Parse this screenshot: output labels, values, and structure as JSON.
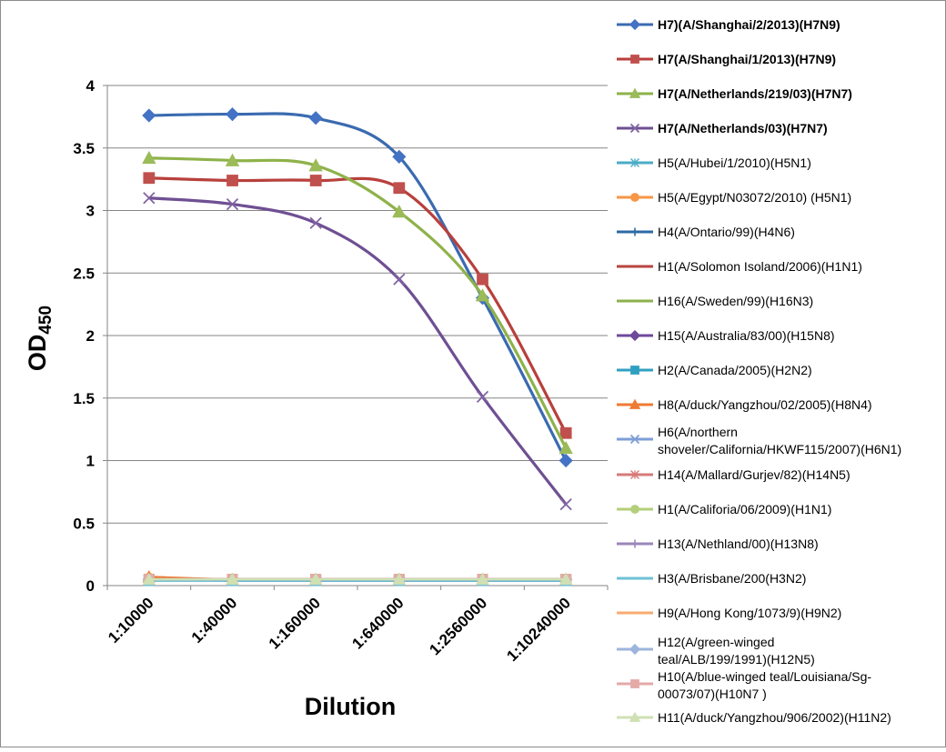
{
  "chart_data": {
    "type": "line",
    "title": "",
    "xlabel": "Dilution",
    "ylabel": {
      "main": "OD",
      "sub": "450"
    },
    "ylim": [
      0,
      4
    ],
    "yticks": [
      "0",
      "0.5",
      "1",
      "1.5",
      "2",
      "2.5",
      "3",
      "3.5",
      "4"
    ],
    "grid": true,
    "legend_position": "right",
    "categories": [
      "1:10000",
      "1:40000",
      "1:160000",
      "1:640000",
      "1:2560000",
      "1:10240000"
    ],
    "series": [
      {
        "name": "H7)(A/Shanghai/2/2013)(H7N9)",
        "bold": true,
        "color": "#4472c4",
        "line_color": "#3a6bb0",
        "marker": "diamond",
        "values": [
          3.76,
          3.77,
          3.74,
          3.43,
          2.3,
          1.0
        ]
      },
      {
        "name": "H7(A/Shanghai/1/2013)(H7N9)",
        "bold": true,
        "color": "#c0504d",
        "line_color": "#b8403c",
        "marker": "square",
        "values": [
          3.26,
          3.24,
          3.24,
          3.18,
          2.45,
          1.22
        ]
      },
      {
        "name": "H7(A/Netherlands/219/03)(H7N7)",
        "bold": true,
        "color": "#9bbb59",
        "line_color": "#8eb24a",
        "marker": "triangle",
        "values": [
          3.42,
          3.4,
          3.36,
          2.99,
          2.32,
          1.1
        ]
      },
      {
        "name": "H7(A/Netherlands/03)(H7N7)",
        "bold": true,
        "color": "#8064a2",
        "line_color": "#6f4f93",
        "marker": "x",
        "values": [
          3.1,
          3.05,
          2.9,
          2.45,
          1.51,
          0.65
        ]
      },
      {
        "name": "H5(A/Hubei/1/2010)(H5N1)",
        "bold": false,
        "color": "#4bacc6",
        "marker": "star",
        "values": [
          0.05,
          0.04,
          0.04,
          0.04,
          0.04,
          0.04
        ]
      },
      {
        "name": "H5(A/Egypt/N03072/2010) (H5N1)",
        "bold": false,
        "color": "#f79646",
        "marker": "circle",
        "values": [
          0.06,
          0.05,
          0.05,
          0.05,
          0.05,
          0.05
        ]
      },
      {
        "name": "H4(A/Ontario/99)(H4N6)",
        "bold": false,
        "color": "#2c6aa6",
        "marker": "plus",
        "values": [
          0.05,
          0.04,
          0.04,
          0.04,
          0.04,
          0.04
        ]
      },
      {
        "name": "H1(A/Solomon Isoland/2006)(H1N1)",
        "bold": false,
        "color": "#b84541",
        "marker": "none",
        "values": [
          0.05,
          0.05,
          0.05,
          0.05,
          0.05,
          0.05
        ]
      },
      {
        "name": "H16(A/Sweden/99)(H16N3)",
        "bold": false,
        "color": "#8cb24c",
        "marker": "none",
        "values": [
          0.05,
          0.05,
          0.05,
          0.05,
          0.05,
          0.05
        ]
      },
      {
        "name": "H15(A/Australia/83/00)(H15N8)",
        "bold": false,
        "color": "#6e4a9a",
        "marker": "diamond",
        "values": [
          0.05,
          0.05,
          0.05,
          0.05,
          0.05,
          0.05
        ]
      },
      {
        "name": "H2(A/Canada/2005)(H2N2)",
        "bold": false,
        "color": "#31a0c0",
        "marker": "square",
        "values": [
          0.04,
          0.04,
          0.04,
          0.04,
          0.04,
          0.04
        ]
      },
      {
        "name": "H8(A/duck/Yangzhou/02/2005)(H8N4)",
        "bold": false,
        "color": "#ef7a33",
        "marker": "triangle",
        "values": [
          0.07,
          0.05,
          0.05,
          0.05,
          0.05,
          0.05
        ]
      },
      {
        "name": "H6(A/northern shoveler/California/HKWF115/2007)(H6N1)",
        "bold": false,
        "color": "#7e9ed6",
        "marker": "x",
        "values": [
          0.05,
          0.05,
          0.05,
          0.05,
          0.05,
          0.05
        ]
      },
      {
        "name": "H14(A/Mallard/Gurjev/82)(H14N5)",
        "bold": false,
        "color": "#d67a78",
        "marker": "star",
        "values": [
          0.05,
          0.05,
          0.05,
          0.05,
          0.05,
          0.05
        ]
      },
      {
        "name": "H1(A/Califoria/06/2009)(H1N1)",
        "bold": false,
        "color": "#b3cf7a",
        "marker": "circle",
        "values": [
          0.05,
          0.05,
          0.05,
          0.05,
          0.05,
          0.05
        ]
      },
      {
        "name": "H13(A/Nethland/00)(H13N8)",
        "bold": false,
        "color": "#9b86bb",
        "marker": "plus",
        "values": [
          0.05,
          0.05,
          0.05,
          0.05,
          0.05,
          0.05
        ]
      },
      {
        "name": "H3(A/Brisbane/200(H3N2)",
        "bold": false,
        "color": "#6fc0d6",
        "marker": "none",
        "values": [
          0.04,
          0.04,
          0.04,
          0.04,
          0.04,
          0.04
        ]
      },
      {
        "name": "H9(A/Hong Kong/1073/9)(H9N2)",
        "bold": false,
        "color": "#f7ab72",
        "marker": "none",
        "values": [
          0.05,
          0.05,
          0.05,
          0.05,
          0.05,
          0.05
        ]
      },
      {
        "name": "H12(A/green-winged teal/ALB/199/1991)(H12N5)",
        "bold": false,
        "color": "#9db5dc",
        "marker": "diamond",
        "values": [
          0.05,
          0.05,
          0.05,
          0.05,
          0.05,
          0.05
        ]
      },
      {
        "name": "H10(A/blue-winged teal/Louisiana/Sg-00073/07)(H10N7 )",
        "bold": false,
        "color": "#e3aaa8",
        "marker": "square",
        "values": [
          0.05,
          0.05,
          0.05,
          0.05,
          0.05,
          0.05
        ]
      },
      {
        "name": "H11(A/duck/Yangzhou/906/2002)(H11N2)",
        "bold": false,
        "color": "#cfe0b3",
        "marker": "triangle",
        "values": [
          0.05,
          0.05,
          0.05,
          0.05,
          0.05,
          0.05
        ]
      }
    ]
  }
}
